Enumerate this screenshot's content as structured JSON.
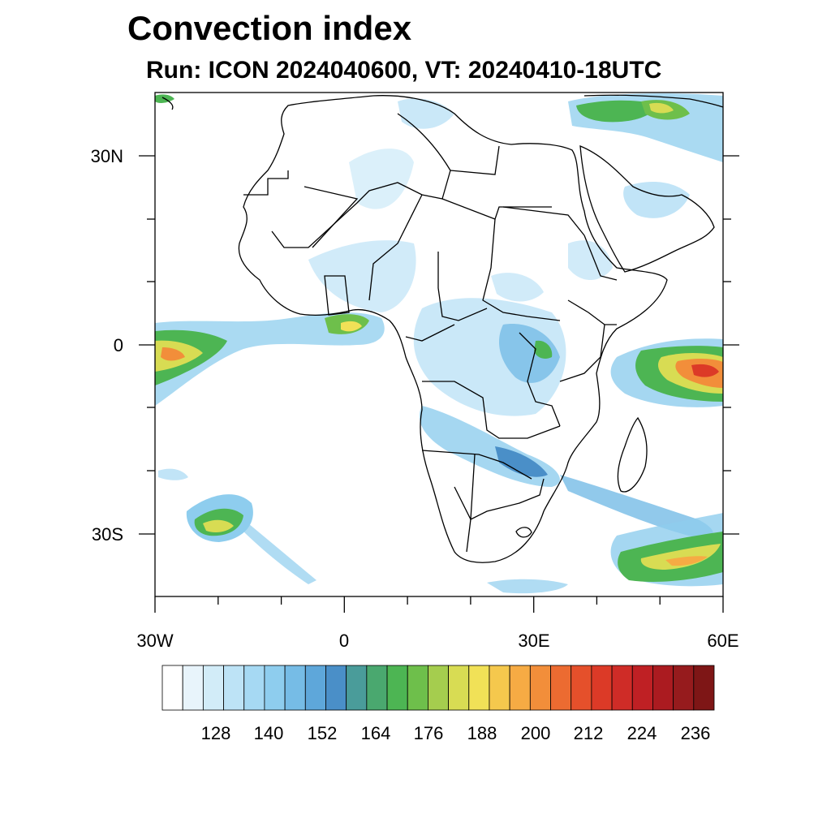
{
  "header": {
    "title": "Convection index",
    "subtitle": "Run: ICON 2024040600,  VT: 20240410-18UTC"
  },
  "map": {
    "lat_labels": [
      "30N",
      "0",
      "30S"
    ],
    "lon_labels": [
      "30W",
      "0",
      "30E",
      "60E"
    ]
  },
  "colorbar": {
    "labels": [
      "128",
      "140",
      "152",
      "164",
      "176",
      "188",
      "200",
      "212",
      "224",
      "236"
    ],
    "colors": [
      "#ffffff",
      "#e8f4fb",
      "#d2ecf8",
      "#bde3f6",
      "#a6d9f3",
      "#8ecdee",
      "#76bce6",
      "#5ea7da",
      "#4a8fc8",
      "#4a9c9a",
      "#4aa86f",
      "#4db553",
      "#6ebf4b",
      "#a5cd4e",
      "#d8dc53",
      "#f1e157",
      "#f5c84d",
      "#f6ab44",
      "#f28e3a",
      "#ec6b31",
      "#e5502b",
      "#dc3a27",
      "#cf2c27",
      "#bf2024",
      "#ab1b20",
      "#961b1d",
      "#7e1616"
    ]
  }
}
